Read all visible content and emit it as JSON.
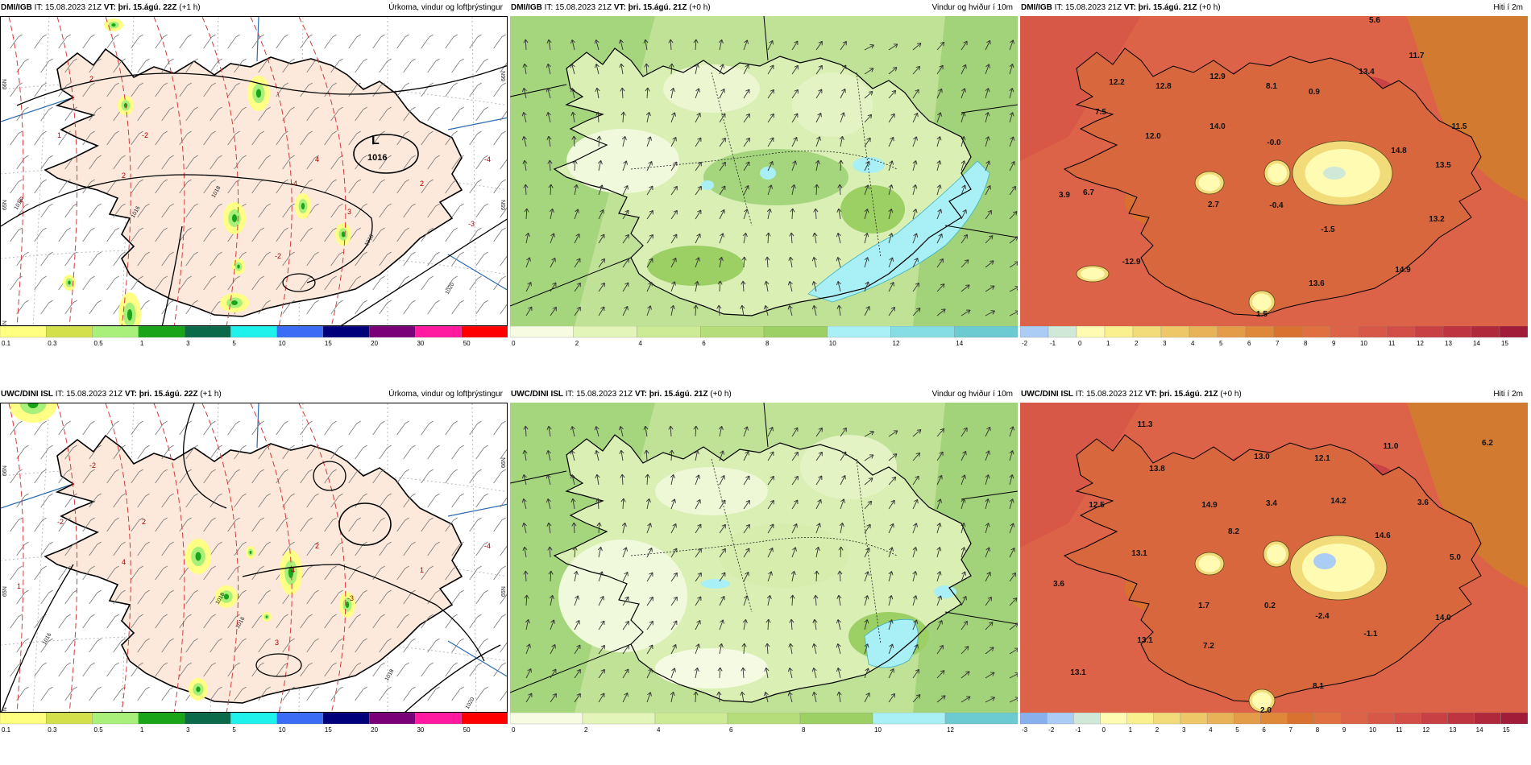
{
  "panels": [
    {
      "id": "p1",
      "model": "DMI/IGB",
      "it": "IT: 15.08.2023 21Z",
      "vt": "VT: þri. 15.ágú. 22Z",
      "lead": "(+1 h)",
      "title": "Úrkoma, vindur og loftþrýstingur"
    },
    {
      "id": "p2",
      "model": "DMI/IGB",
      "it": "IT: 15.08.2023 21Z",
      "vt": "VT: þri. 15.ágú. 21Z",
      "lead": "(+0 h)",
      "title": "Vindur og hviður í 10m"
    },
    {
      "id": "p3",
      "model": "DMI/IGB",
      "it": "IT: 15.08.2023 21Z",
      "vt": "VT: þri. 15.ágú. 21Z",
      "lead": "(+0 h)",
      "title": "Hiti í 2m"
    },
    {
      "id": "p4",
      "model": "UWC/DINI ISL",
      "it": "IT: 15.08.2023 21Z",
      "vt": "VT: þri. 15.ágú. 22Z",
      "lead": "(+1 h)",
      "title": "Úrkoma, vindur og loftþrýstingur"
    },
    {
      "id": "p5",
      "model": "UWC/DINI ISL",
      "it": "IT: 15.08.2023 21Z",
      "vt": "VT: þri. 15.ágú. 21Z",
      "lead": "(+0 h)",
      "title": "Vindur og hviður í 10m"
    },
    {
      "id": "p6",
      "model": "UWC/DINI ISL",
      "it": "IT: 15.08.2023 21Z",
      "vt": "VT: þri. 15.ágú. 21Z",
      "lead": "(+0 h)",
      "title": "Hiti í 2m"
    }
  ],
  "colorbars": {
    "precip": {
      "labels": [
        "0.1",
        "0.3",
        "0.5",
        "1",
        "3",
        "5",
        "10",
        "15",
        "20",
        "30",
        "50"
      ],
      "colors": [
        "#ffff80",
        "#d4e04a",
        "#a8f07a",
        "#19a419",
        "#0a6a4a",
        "#1ff2ec",
        "#3a6cf5",
        "#00007a",
        "#7a007a",
        "#ff1aa0",
        "#ff0000"
      ]
    },
    "wind1": {
      "labels": [
        "0",
        "2",
        "4",
        "6",
        "8",
        "10",
        "12",
        "14"
      ],
      "colors": [
        "#f6fbe2",
        "#e3f5b8",
        "#cdeb95",
        "#b5de7b",
        "#9ccf64",
        "#a8f0f5",
        "#86dde3",
        "#6ccbd0"
      ]
    },
    "wind2": {
      "labels": [
        "0",
        "2",
        "4",
        "6",
        "8",
        "10",
        "12"
      ],
      "colors": [
        "#f6fbe2",
        "#e3f5b8",
        "#cdeb95",
        "#b5de7b",
        "#9ccf64",
        "#a8f0f5",
        "#6ccbd0"
      ]
    },
    "temp1": {
      "labels": [
        "-2",
        "-1",
        "0",
        "1",
        "2",
        "3",
        "4",
        "5",
        "6",
        "7",
        "8",
        "9",
        "10",
        "11",
        "12",
        "13",
        "14",
        "15"
      ],
      "colors": [
        "#aaccf5",
        "#d0e8d8",
        "#fffbb3",
        "#fbf08e",
        "#f2dc7a",
        "#eec868",
        "#e8b358",
        "#e59c48",
        "#e0883a",
        "#d8722e",
        "#e07040",
        "#dc6248",
        "#d85848",
        "#d44e48",
        "#c84044",
        "#be3440",
        "#b0283c",
        "#a01c38"
      ]
    },
    "temp2": {
      "labels": [
        "-3",
        "-2",
        "-1",
        "0",
        "1",
        "2",
        "3",
        "4",
        "5",
        "6",
        "7",
        "8",
        "9",
        "10",
        "11",
        "12",
        "13",
        "14",
        "15"
      ],
      "colors": [
        "#88b0ec",
        "#aaccf5",
        "#d0e8d8",
        "#fffbb3",
        "#fbf08e",
        "#f2dc7a",
        "#eec868",
        "#e8b358",
        "#e59c48",
        "#e0883a",
        "#d8722e",
        "#e07040",
        "#dc6248",
        "#d85848",
        "#d44e48",
        "#c84044",
        "#be3440",
        "#b0283c",
        "#a01c38"
      ]
    }
  },
  "temp_values_top": [
    "12.2",
    "12.8",
    "12.9",
    "8.1",
    "0.9",
    "13.4",
    "11.7",
    "7.5",
    "14.0",
    "12.0",
    "-0.0",
    "11.5",
    "14.8",
    "13.5",
    "6.7",
    "3.9",
    "2.7",
    "-0.4",
    "-1.5",
    "13.2",
    "-12.9",
    "14.9",
    "13.6",
    "1.5",
    "5.6"
  ],
  "temp_values_bottom": [
    "11.3",
    "13.8",
    "13.0",
    "12.1",
    "11.0",
    "6.2",
    "12.5",
    "14.9",
    "3.4",
    "14.2",
    "3.6",
    "8.2",
    "14.6",
    "13.1",
    "5.0",
    "3.6",
    "1.7",
    "0.2",
    "-2.4",
    "-1.1",
    "14.0",
    "13.1",
    "7.2",
    "13.1",
    "8.1",
    "2.0"
  ],
  "pressure_top": {
    "L": "L",
    "L_value": "1016",
    "isobars": [
      "1018",
      "1016",
      "1016",
      "1018",
      "1020"
    ],
    "precip_amounts": [
      "2",
      "-2",
      "2",
      "4",
      "-4",
      "-2",
      "1",
      "3",
      "2",
      "-4",
      "-2",
      "-3"
    ]
  },
  "pressure_bottom": {
    "isobars": [
      "1016",
      "1016",
      "1018",
      "1018",
      "1020"
    ],
    "precip_amounts": [
      "-2",
      "2",
      "4",
      "2",
      "4",
      "1",
      "-2",
      "-3",
      "1",
      "-4",
      "3"
    ]
  },
  "lat_labels": [
    "66N",
    "65N",
    "64N"
  ]
}
